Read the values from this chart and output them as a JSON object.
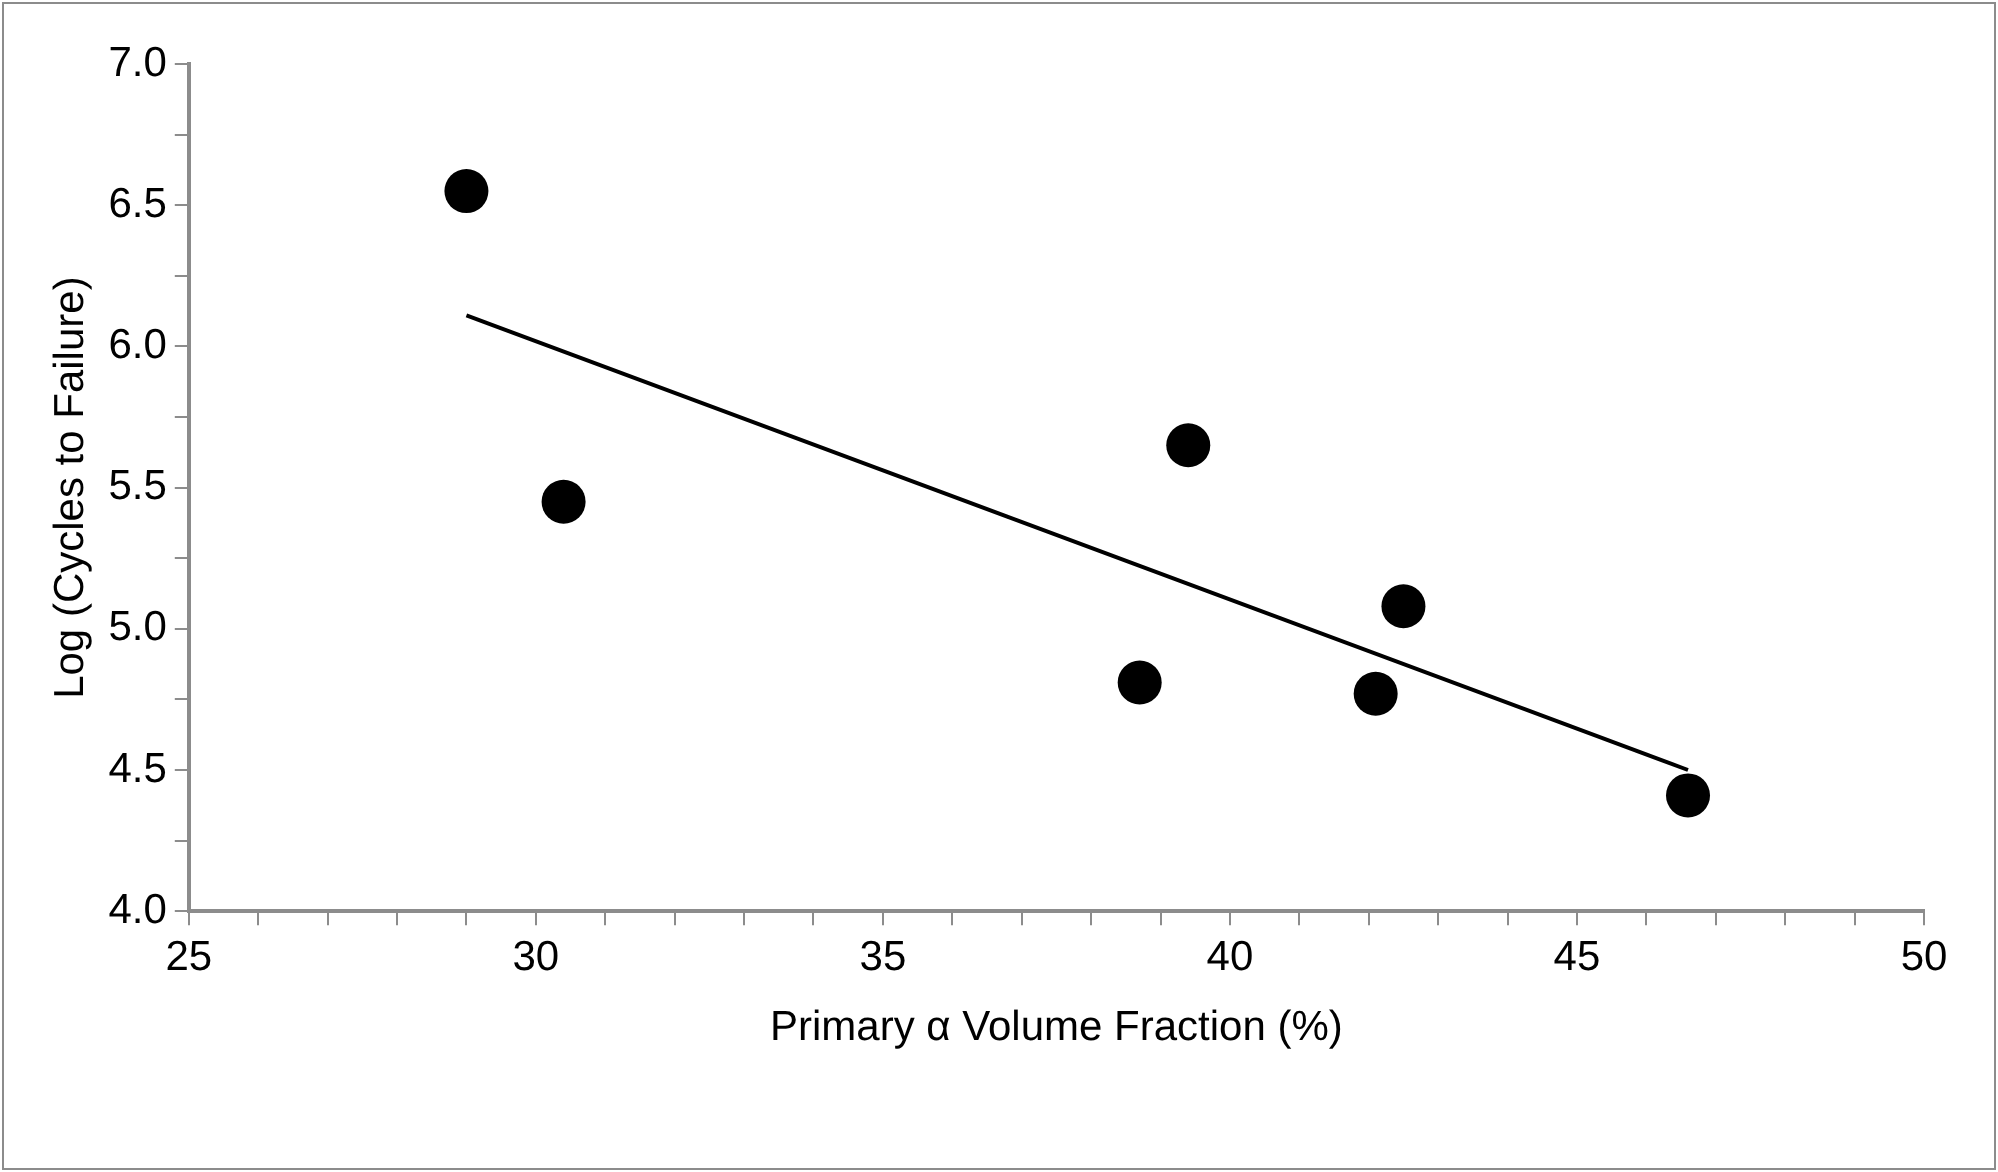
{
  "chart_data": {
    "type": "scatter",
    "xlabel": "Primary α Volume Fraction (%)",
    "ylabel": "Log (Cycles to Failure)",
    "xlim": [
      25,
      50
    ],
    "ylim": [
      4,
      7
    ],
    "xticks": [
      25,
      {
        "value": 26,
        "label": null
      },
      {
        "value": 27,
        "label": null
      },
      {
        "value": 28,
        "label": null
      },
      {
        "value": 29,
        "label": null
      },
      30,
      {
        "value": 31,
        "label": null
      },
      {
        "value": 32,
        "label": null
      },
      {
        "value": 33,
        "label": null
      },
      {
        "value": 34,
        "label": null
      },
      35,
      {
        "value": 36,
        "label": null
      },
      {
        "value": 37,
        "label": null
      },
      {
        "value": 38,
        "label": null
      },
      {
        "value": 39,
        "label": null
      },
      40,
      {
        "value": 41,
        "label": null
      },
      {
        "value": 42,
        "label": null
      },
      {
        "value": 43,
        "label": null
      },
      {
        "value": 44,
        "label": null
      },
      45,
      {
        "value": 46,
        "label": null
      },
      {
        "value": 47,
        "label": null
      },
      {
        "value": 48,
        "label": null
      },
      {
        "value": 49,
        "label": null
      },
      50
    ],
    "yticks": [
      {
        "value": 4,
        "label": "4.0"
      },
      {
        "value": 4.25,
        "label": null
      },
      {
        "value": 4.5,
        "label": "4.5"
      },
      {
        "value": 4.75,
        "label": null
      },
      {
        "value": 5,
        "label": "5.0"
      },
      {
        "value": 5.25,
        "label": null
      },
      {
        "value": 5.5,
        "label": "5.5"
      },
      {
        "value": 5.75,
        "label": null
      },
      {
        "value": 6,
        "label": "6.0"
      },
      {
        "value": 6.25,
        "label": null
      },
      {
        "value": 6.5,
        "label": "6.5"
      },
      {
        "value": 6.75,
        "label": null
      },
      {
        "value": 7,
        "label": "7.0"
      }
    ],
    "grid": false,
    "legend": false,
    "marker": "circle",
    "series": [
      {
        "type": "scatter",
        "color": "#000000",
        "x": [
          29.0,
          30.4,
          38.7,
          39.4,
          42.1,
          42.5,
          46.6
        ],
        "values": [
          6.55,
          5.45,
          4.81,
          5.65,
          4.77,
          5.08,
          4.41
        ]
      },
      {
        "type": "line",
        "color": "#000000",
        "marker": "none",
        "x": [
          29.0,
          46.6
        ],
        "values": [
          6.11,
          4.5
        ]
      }
    ]
  }
}
